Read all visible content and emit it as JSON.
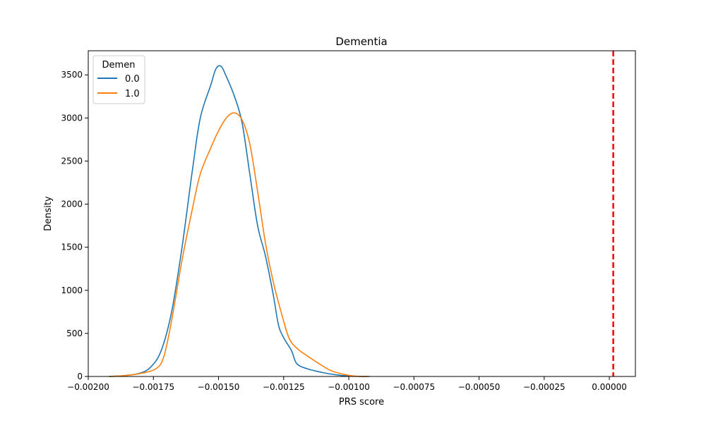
{
  "chart_data": {
    "type": "line",
    "title": "Dementia",
    "xlabel": "PRS score",
    "ylabel": "Density",
    "xlim": [
      -0.002,
      0.0001
    ],
    "ylim": [
      0,
      3780
    ],
    "x_ticks": [
      -0.002,
      -0.00175,
      -0.0015,
      -0.00125,
      -0.001,
      -0.00075,
      -0.0005,
      -0.00025,
      0.0
    ],
    "x_tick_labels": [
      "−0.00200",
      "−0.00175",
      "−0.00150",
      "−0.00125",
      "−0.00100",
      "−0.00075",
      "−0.00050",
      "−0.00025",
      "0.00000"
    ],
    "y_ticks": [
      0,
      500,
      1000,
      1500,
      2000,
      2500,
      3000,
      3500
    ],
    "y_tick_labels": [
      "0",
      "500",
      "1000",
      "1500",
      "2000",
      "2500",
      "3000",
      "3500"
    ],
    "grid": false,
    "legend": {
      "title": "Demen",
      "placement": "top-left"
    },
    "series": [
      {
        "name": "0.0",
        "color": "#1f77b4",
        "points": [
          [
            -0.00192,
            0
          ],
          [
            -0.00186,
            10
          ],
          [
            -0.0018,
            40
          ],
          [
            -0.00176,
            110
          ],
          [
            -0.00172,
            300
          ],
          [
            -0.00168,
            750
          ],
          [
            -0.00164,
            1500
          ],
          [
            -0.0016,
            2400
          ],
          [
            -0.00157,
            3000
          ],
          [
            -0.00153,
            3380
          ],
          [
            -0.00151,
            3570
          ],
          [
            -0.00149,
            3600
          ],
          [
            -0.00147,
            3480
          ],
          [
            -0.00144,
            3260
          ],
          [
            -0.00141,
            2950
          ],
          [
            -0.00138,
            2350
          ],
          [
            -0.00135,
            1750
          ],
          [
            -0.00132,
            1400
          ],
          [
            -0.00129,
            950
          ],
          [
            -0.00127,
            600
          ],
          [
            -0.00125,
            450
          ],
          [
            -0.00122,
            300
          ],
          [
            -0.0012,
            150
          ],
          [
            -0.00116,
            90
          ],
          [
            -0.0011,
            45
          ],
          [
            -0.00105,
            20
          ],
          [
            -0.001,
            5
          ],
          [
            -0.00092,
            0
          ]
        ]
      },
      {
        "name": "1.0",
        "color": "#ff7f0e",
        "points": [
          [
            -0.00192,
            0
          ],
          [
            -0.00186,
            10
          ],
          [
            -0.0018,
            35
          ],
          [
            -0.00174,
            90
          ],
          [
            -0.00171,
            230
          ],
          [
            -0.00168,
            650
          ],
          [
            -0.00164,
            1350
          ],
          [
            -0.0016,
            1950
          ],
          [
            -0.00157,
            2350
          ],
          [
            -0.00153,
            2650
          ],
          [
            -0.0015,
            2850
          ],
          [
            -0.00147,
            3000
          ],
          [
            -0.00144,
            3060
          ],
          [
            -0.00141,
            2980
          ],
          [
            -0.00138,
            2700
          ],
          [
            -0.00135,
            2150
          ],
          [
            -0.00132,
            1550
          ],
          [
            -0.00129,
            1100
          ],
          [
            -0.00126,
            750
          ],
          [
            -0.00123,
            450
          ],
          [
            -0.0012,
            330
          ],
          [
            -0.00116,
            240
          ],
          [
            -0.00112,
            160
          ],
          [
            -0.00107,
            70
          ],
          [
            -0.00102,
            25
          ],
          [
            -0.00098,
            5
          ],
          [
            -0.00093,
            0
          ]
        ]
      }
    ],
    "reference_line": {
      "x": 1.5e-05,
      "color": "#ff0000",
      "style": "dashed"
    }
  }
}
